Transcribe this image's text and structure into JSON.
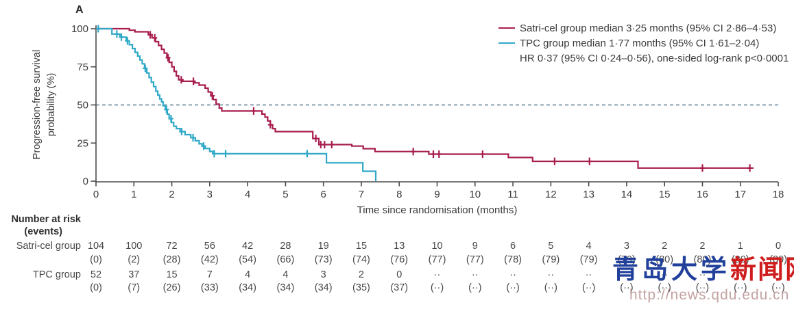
{
  "panel_label": "A",
  "colors": {
    "satri_cel": "#a81d4f",
    "tpc": "#2fa9c7",
    "median_dash": "#5b7e92",
    "axis": "#4b4b4b",
    "text": "#3a3a3a"
  },
  "y_axis": {
    "title_line1": "Progression-free survival",
    "title_line2": "probability (%)",
    "ticks": [
      0,
      25,
      50,
      75,
      100
    ]
  },
  "x_axis": {
    "title": "Time since randomisation (months)",
    "ticks": [
      0,
      1,
      2,
      3,
      4,
      5,
      6,
      7,
      8,
      9,
      10,
      11,
      12,
      13,
      14,
      15,
      16,
      17,
      18
    ]
  },
  "legend": {
    "satri_label": "Satri-cel group median 3·25 months (95% CI 2·86–4·53)",
    "tpc_label": "TPC group median 1·77 months (95% CI 1·61–2·04)",
    "hr_text": "HR 0·37 (95% CI 0·24–0·56), one-sided log-rank p<0·0001"
  },
  "chart_data": {
    "type": "line",
    "style": "kaplan-meier-step",
    "xlabel": "Time since randomisation (months)",
    "ylabel": "Progression-free survival probability (%)",
    "xlim": [
      0,
      18
    ],
    "ylim": [
      0,
      100
    ],
    "grid": false,
    "reference_line_pct": 50,
    "legend_position": "top-right",
    "annotations": {
      "hazard_ratio": "HR 0·37 (95% CI 0·24–0·56)",
      "p_value": "one-sided log-rank p<0·0001"
    },
    "series": [
      {
        "name": "Satri-cel group",
        "color": "#a81d4f",
        "median_months": "3·25",
        "ci95": "2·86–4·53",
        "steps": [
          [
            0,
            100
          ],
          [
            0.88,
            100
          ],
          [
            0.88,
            99
          ],
          [
            1.03,
            99
          ],
          [
            1.03,
            98
          ],
          [
            1.38,
            98
          ],
          [
            1.38,
            96
          ],
          [
            1.48,
            96
          ],
          [
            1.48,
            94
          ],
          [
            1.57,
            94
          ],
          [
            1.57,
            91.5
          ],
          [
            1.65,
            91.5
          ],
          [
            1.65,
            89
          ],
          [
            1.73,
            89
          ],
          [
            1.73,
            86.5
          ],
          [
            1.8,
            86.5
          ],
          [
            1.8,
            84
          ],
          [
            1.87,
            84
          ],
          [
            1.87,
            81
          ],
          [
            1.93,
            81
          ],
          [
            1.93,
            78
          ],
          [
            2.0,
            78
          ],
          [
            2.0,
            75
          ],
          [
            2.06,
            75
          ],
          [
            2.06,
            72
          ],
          [
            2.12,
            72
          ],
          [
            2.12,
            69
          ],
          [
            2.18,
            69
          ],
          [
            2.18,
            66.5
          ],
          [
            2.28,
            66.5
          ],
          [
            2.28,
            65.5
          ],
          [
            2.6,
            65.5
          ],
          [
            2.6,
            64.5
          ],
          [
            2.72,
            64.5
          ],
          [
            2.72,
            63
          ],
          [
            2.88,
            63
          ],
          [
            2.88,
            61
          ],
          [
            2.96,
            61
          ],
          [
            2.96,
            58.5
          ],
          [
            3.03,
            58.5
          ],
          [
            3.03,
            56
          ],
          [
            3.09,
            56
          ],
          [
            3.09,
            53.5
          ],
          [
            3.17,
            53.5
          ],
          [
            3.17,
            50.5
          ],
          [
            3.25,
            50.5
          ],
          [
            3.25,
            48
          ],
          [
            3.32,
            48
          ],
          [
            3.32,
            46
          ],
          [
            4.38,
            46
          ],
          [
            4.38,
            44
          ],
          [
            4.46,
            44
          ],
          [
            4.46,
            42
          ],
          [
            4.53,
            42
          ],
          [
            4.53,
            39.5
          ],
          [
            4.6,
            39.5
          ],
          [
            4.6,
            37
          ],
          [
            4.66,
            37
          ],
          [
            4.66,
            34.5
          ],
          [
            4.73,
            34.5
          ],
          [
            4.73,
            32.5
          ],
          [
            5.72,
            32.5
          ],
          [
            5.72,
            28
          ],
          [
            5.88,
            28
          ],
          [
            5.88,
            24
          ],
          [
            6.75,
            24
          ],
          [
            6.75,
            23
          ],
          [
            7.05,
            23
          ],
          [
            7.05,
            21.3
          ],
          [
            7.36,
            21.3
          ],
          [
            7.36,
            19.4
          ],
          [
            8.78,
            19.4
          ],
          [
            8.78,
            17.7
          ],
          [
            10.88,
            17.7
          ],
          [
            10.88,
            15.5
          ],
          [
            11.52,
            15.5
          ],
          [
            11.52,
            13
          ],
          [
            14.3,
            13
          ],
          [
            14.3,
            8.6
          ],
          [
            17.35,
            8.6
          ]
        ],
        "censor_months": [
          1.43,
          1.55,
          1.9,
          2.25,
          2.57,
          3.07,
          4.16,
          4.6,
          5.8,
          5.93,
          6.03,
          6.22,
          8.37,
          8.9,
          9.05,
          10.2,
          12.1,
          13.02,
          16.0,
          17.25
        ]
      },
      {
        "name": "TPC group",
        "color": "#2fa9c7",
        "median_months": "1·77",
        "ci95": "1·61–2·04",
        "steps": [
          [
            0,
            100
          ],
          [
            0.42,
            100
          ],
          [
            0.42,
            96.5
          ],
          [
            0.63,
            96.5
          ],
          [
            0.63,
            94.5
          ],
          [
            0.8,
            94.5
          ],
          [
            0.8,
            92
          ],
          [
            0.88,
            92
          ],
          [
            0.88,
            89.5
          ],
          [
            0.96,
            89.5
          ],
          [
            0.96,
            87
          ],
          [
            1.03,
            87
          ],
          [
            1.03,
            84.5
          ],
          [
            1.1,
            84.5
          ],
          [
            1.1,
            82
          ],
          [
            1.16,
            82
          ],
          [
            1.16,
            79.5
          ],
          [
            1.22,
            79.5
          ],
          [
            1.22,
            77
          ],
          [
            1.28,
            77
          ],
          [
            1.28,
            74
          ],
          [
            1.34,
            74
          ],
          [
            1.34,
            71
          ],
          [
            1.4,
            71
          ],
          [
            1.4,
            68
          ],
          [
            1.46,
            68
          ],
          [
            1.46,
            65
          ],
          [
            1.52,
            65
          ],
          [
            1.52,
            62
          ],
          [
            1.58,
            62
          ],
          [
            1.58,
            59
          ],
          [
            1.63,
            59
          ],
          [
            1.63,
            56.5
          ],
          [
            1.68,
            56.5
          ],
          [
            1.68,
            54
          ],
          [
            1.73,
            54
          ],
          [
            1.73,
            52
          ],
          [
            1.77,
            52
          ],
          [
            1.77,
            49.5
          ],
          [
            1.83,
            49.5
          ],
          [
            1.83,
            47
          ],
          [
            1.88,
            47
          ],
          [
            1.88,
            44
          ],
          [
            1.93,
            44
          ],
          [
            1.93,
            41
          ],
          [
            1.99,
            41
          ],
          [
            1.99,
            38.5
          ],
          [
            2.05,
            38.5
          ],
          [
            2.05,
            36
          ],
          [
            2.12,
            36
          ],
          [
            2.12,
            34.5
          ],
          [
            2.22,
            34.5
          ],
          [
            2.22,
            32.5
          ],
          [
            2.35,
            32.5
          ],
          [
            2.35,
            30.5
          ],
          [
            2.5,
            30.5
          ],
          [
            2.5,
            28.5
          ],
          [
            2.62,
            28.5
          ],
          [
            2.62,
            26.5
          ],
          [
            2.72,
            26.5
          ],
          [
            2.72,
            24.5
          ],
          [
            2.8,
            24.5
          ],
          [
            2.8,
            23
          ],
          [
            2.88,
            23
          ],
          [
            2.88,
            21.5
          ],
          [
            3.0,
            21.5
          ],
          [
            3.0,
            19.5
          ],
          [
            3.08,
            19.5
          ],
          [
            3.08,
            18
          ],
          [
            6.08,
            18
          ],
          [
            6.08,
            12
          ],
          [
            7.04,
            12
          ],
          [
            7.04,
            6.5
          ],
          [
            7.38,
            6.5
          ],
          [
            7.38,
            0
          ]
        ],
        "censor_months": [
          0.06,
          0.55,
          0.67,
          0.83,
          1.3,
          1.86,
          1.98,
          2.26,
          2.56,
          2.84,
          3.12,
          3.42,
          5.57
        ]
      }
    ]
  },
  "risk_table": {
    "header_line1": "Number at risk",
    "header_line2": "(events)",
    "months": [
      0,
      1,
      2,
      3,
      4,
      5,
      6,
      7,
      8,
      9,
      10,
      11,
      12,
      13,
      14,
      15,
      16,
      17,
      18
    ],
    "rows": [
      {
        "label": "Satri-cel group",
        "at_risk": [
          "104",
          "100",
          "72",
          "56",
          "42",
          "28",
          "19",
          "15",
          "13",
          "10",
          "9",
          "6",
          "5",
          "4",
          "3",
          "2",
          "2",
          "1",
          "0"
        ],
        "events": [
          "(0)",
          "(2)",
          "(28)",
          "(42)",
          "(54)",
          "(66)",
          "(73)",
          "(74)",
          "(76)",
          "(77)",
          "(77)",
          "(78)",
          "(79)",
          "(79)",
          "(79)",
          "(80)",
          "(80)",
          "(80)",
          "(80)"
        ]
      },
      {
        "label": "TPC group",
        "at_risk": [
          "52",
          "37",
          "15",
          "7",
          "4",
          "4",
          "3",
          "2",
          "0",
          "··",
          "··",
          "··",
          "··",
          "··",
          "··",
          "··",
          "··",
          "··",
          "··"
        ],
        "events": [
          "(0)",
          "(7)",
          "(26)",
          "(33)",
          "(34)",
          "(34)",
          "(34)",
          "(35)",
          "(37)",
          "(··)",
          "(··)",
          "(··)",
          "(··)",
          "(··)",
          "(··)",
          "(··)",
          "(··)",
          "(··)",
          "(··)"
        ]
      }
    ]
  },
  "watermark": {
    "text_blue": "青岛大学",
    "text_red": "新闻网",
    "url": "http://news.qdu.edu.cn"
  }
}
